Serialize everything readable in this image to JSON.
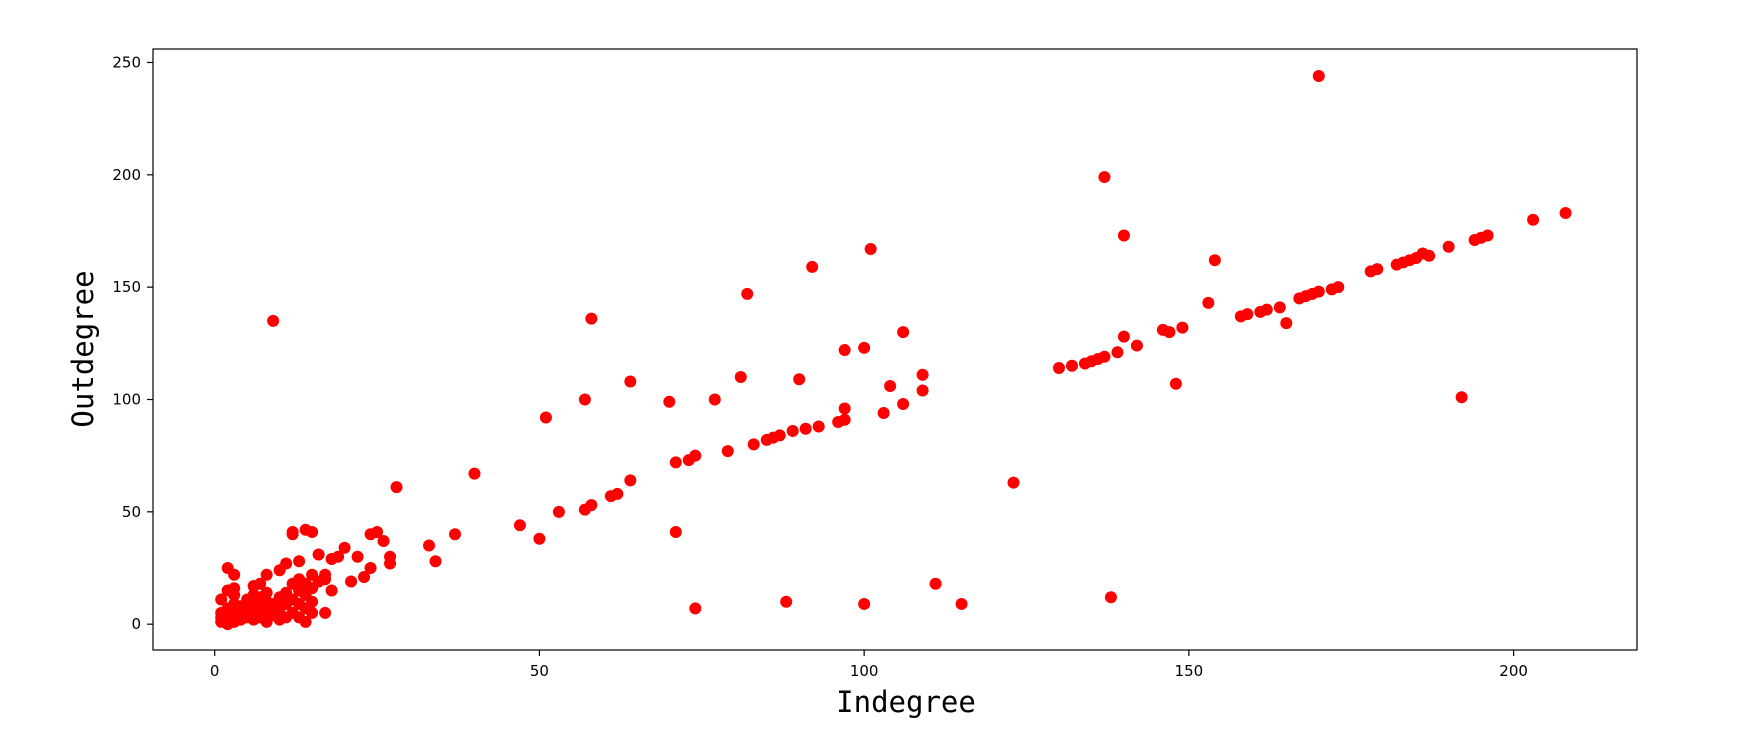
{
  "chart_data": {
    "type": "scatter",
    "xlabel": "Indegree",
    "ylabel": "Outdegree",
    "xlim": [
      -9.5,
      219
    ],
    "ylim": [
      -11.5,
      256
    ],
    "xticks": [
      0,
      50,
      100,
      150,
      200
    ],
    "yticks": [
      0,
      50,
      100,
      150,
      200,
      250
    ],
    "grid": false,
    "marker_color": "#ff0000",
    "series": [
      {
        "points": [
          [
            1,
            1
          ],
          [
            1,
            3
          ],
          [
            1,
            5
          ],
          [
            1,
            11
          ],
          [
            2,
            0
          ],
          [
            2,
            2
          ],
          [
            2,
            4
          ],
          [
            2,
            7
          ],
          [
            2,
            15
          ],
          [
            2,
            25
          ],
          [
            3,
            1
          ],
          [
            3,
            3
          ],
          [
            3,
            6
          ],
          [
            3,
            9
          ],
          [
            3,
            13
          ],
          [
            3,
            16
          ],
          [
            3,
            22
          ],
          [
            4,
            2
          ],
          [
            4,
            5
          ],
          [
            4,
            8
          ],
          [
            5,
            3
          ],
          [
            5,
            7
          ],
          [
            5,
            11
          ],
          [
            6,
            2
          ],
          [
            6,
            5
          ],
          [
            6,
            9
          ],
          [
            6,
            13
          ],
          [
            6,
            17
          ],
          [
            7,
            3
          ],
          [
            7,
            8
          ],
          [
            7,
            12
          ],
          [
            7,
            18
          ],
          [
            8,
            1
          ],
          [
            8,
            6
          ],
          [
            8,
            10
          ],
          [
            8,
            14
          ],
          [
            8,
            22
          ],
          [
            9,
            4
          ],
          [
            9,
            9
          ],
          [
            9,
            135
          ],
          [
            10,
            2
          ],
          [
            10,
            7
          ],
          [
            10,
            12
          ],
          [
            10,
            24
          ],
          [
            11,
            3
          ],
          [
            11,
            9
          ],
          [
            11,
            14
          ],
          [
            11,
            27
          ],
          [
            12,
            5
          ],
          [
            12,
            11
          ],
          [
            12,
            18
          ],
          [
            12,
            40
          ],
          [
            12,
            41
          ],
          [
            13,
            3
          ],
          [
            13,
            9
          ],
          [
            13,
            15
          ],
          [
            13,
            20
          ],
          [
            13,
            28
          ],
          [
            14,
            1
          ],
          [
            14,
            7
          ],
          [
            14,
            13
          ],
          [
            14,
            18
          ],
          [
            14,
            42
          ],
          [
            15,
            5
          ],
          [
            15,
            10
          ],
          [
            15,
            16
          ],
          [
            15,
            22
          ],
          [
            15,
            41
          ],
          [
            16,
            19
          ],
          [
            16,
            31
          ],
          [
            17,
            5
          ],
          [
            17,
            20
          ],
          [
            17,
            22
          ],
          [
            18,
            15
          ],
          [
            18,
            29
          ],
          [
            19,
            30
          ],
          [
            20,
            34
          ],
          [
            21,
            19
          ],
          [
            22,
            30
          ],
          [
            23,
            21
          ],
          [
            24,
            25
          ],
          [
            24,
            40
          ],
          [
            25,
            41
          ],
          [
            26,
            37
          ],
          [
            27,
            27
          ],
          [
            27,
            30
          ],
          [
            28,
            61
          ],
          [
            33,
            35
          ],
          [
            34,
            28
          ],
          [
            37,
            40
          ],
          [
            40,
            67
          ],
          [
            47,
            44
          ],
          [
            50,
            38
          ],
          [
            51,
            92
          ],
          [
            53,
            50
          ],
          [
            57,
            51
          ],
          [
            57,
            100
          ],
          [
            58,
            53
          ],
          [
            58,
            136
          ],
          [
            61,
            57
          ],
          [
            62,
            58
          ],
          [
            64,
            64
          ],
          [
            64,
            108
          ],
          [
            70,
            99
          ],
          [
            71,
            41
          ],
          [
            71,
            72
          ],
          [
            73,
            73
          ],
          [
            74,
            7
          ],
          [
            74,
            75
          ],
          [
            77,
            100
          ],
          [
            79,
            77
          ],
          [
            81,
            110
          ],
          [
            82,
            147
          ],
          [
            83,
            80
          ],
          [
            85,
            82
          ],
          [
            86,
            83
          ],
          [
            87,
            84
          ],
          [
            88,
            10
          ],
          [
            89,
            86
          ],
          [
            90,
            109
          ],
          [
            91,
            87
          ],
          [
            92,
            159
          ],
          [
            93,
            88
          ],
          [
            96,
            90
          ],
          [
            97,
            91
          ],
          [
            97,
            96
          ],
          [
            97,
            122
          ],
          [
            100,
            9
          ],
          [
            100,
            123
          ],
          [
            101,
            167
          ],
          [
            103,
            94
          ],
          [
            104,
            106
          ],
          [
            106,
            98
          ],
          [
            106,
            130
          ],
          [
            109,
            104
          ],
          [
            109,
            111
          ],
          [
            111,
            18
          ],
          [
            115,
            9
          ],
          [
            123,
            63
          ],
          [
            130,
            114
          ],
          [
            132,
            115
          ],
          [
            134,
            116
          ],
          [
            135,
            117
          ],
          [
            136,
            118
          ],
          [
            137,
            119
          ],
          [
            137,
            199
          ],
          [
            138,
            12
          ],
          [
            139,
            121
          ],
          [
            140,
            128
          ],
          [
            140,
            173
          ],
          [
            142,
            124
          ],
          [
            146,
            131
          ],
          [
            147,
            130
          ],
          [
            148,
            107
          ],
          [
            149,
            132
          ],
          [
            153,
            143
          ],
          [
            154,
            162
          ],
          [
            158,
            137
          ],
          [
            159,
            138
          ],
          [
            161,
            139
          ],
          [
            162,
            140
          ],
          [
            164,
            141
          ],
          [
            165,
            134
          ],
          [
            167,
            145
          ],
          [
            168,
            146
          ],
          [
            169,
            147
          ],
          [
            170,
            148
          ],
          [
            170,
            244
          ],
          [
            172,
            149
          ],
          [
            173,
            150
          ],
          [
            178,
            157
          ],
          [
            179,
            158
          ],
          [
            182,
            160
          ],
          [
            183,
            161
          ],
          [
            184,
            162
          ],
          [
            185,
            163
          ],
          [
            186,
            165
          ],
          [
            187,
            164
          ],
          [
            190,
            168
          ],
          [
            192,
            101
          ],
          [
            194,
            171
          ],
          [
            195,
            172
          ],
          [
            196,
            173
          ],
          [
            203,
            180
          ],
          [
            208,
            183
          ]
        ]
      }
    ]
  }
}
